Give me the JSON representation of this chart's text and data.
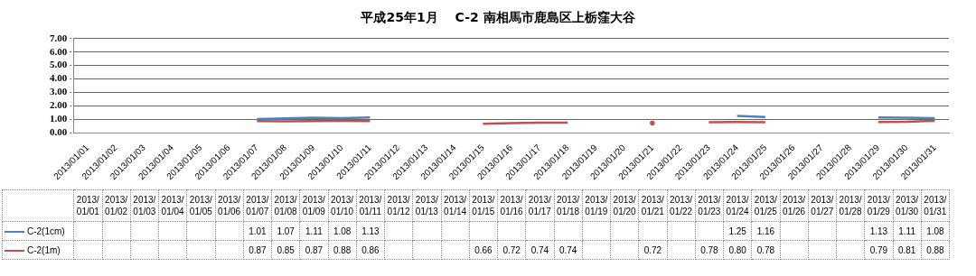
{
  "chart_data": {
    "type": "line",
    "title": "平成25年1月　 C-2 南相馬市鹿島区上栃窪大谷",
    "categories": [
      "2013/01/01",
      "2013/01/02",
      "2013/01/03",
      "2013/01/04",
      "2013/01/05",
      "2013/01/06",
      "2013/01/07",
      "2013/01/08",
      "2013/01/09",
      "2013/01/10",
      "2013/01/11",
      "2013/01/12",
      "2013/01/13",
      "2013/01/14",
      "2013/01/15",
      "2013/01/16",
      "2013/01/17",
      "2013/01/18",
      "2013/01/19",
      "2013/01/20",
      "2013/01/21",
      "2013/01/22",
      "2013/01/23",
      "2013/01/24",
      "2013/01/25",
      "2013/01/26",
      "2013/01/27",
      "2013/01/28",
      "2013/01/29",
      "2013/01/30",
      "2013/01/31"
    ],
    "series": [
      {
        "name": "C-2(1cm)",
        "color": "#4f81bd",
        "values": [
          null,
          null,
          null,
          null,
          null,
          null,
          1.01,
          1.07,
          1.11,
          1.08,
          1.13,
          null,
          null,
          null,
          null,
          null,
          null,
          null,
          null,
          null,
          null,
          null,
          null,
          1.25,
          1.16,
          null,
          null,
          null,
          1.13,
          1.11,
          1.08
        ],
        "value_labels": [
          null,
          null,
          null,
          null,
          null,
          null,
          "1.01",
          "1.07",
          "1.11",
          "1.08",
          "1.13",
          null,
          null,
          null,
          null,
          null,
          null,
          null,
          null,
          null,
          null,
          null,
          null,
          "1.25",
          "1.16",
          null,
          null,
          null,
          "1.13",
          "1.11",
          "1.08"
        ]
      },
      {
        "name": "C-2(1m)",
        "color": "#c0504d",
        "values": [
          null,
          null,
          null,
          null,
          null,
          null,
          0.87,
          0.85,
          0.87,
          0.88,
          0.86,
          null,
          null,
          null,
          0.66,
          0.72,
          0.74,
          0.74,
          null,
          null,
          0.72,
          null,
          0.78,
          0.8,
          0.78,
          null,
          null,
          null,
          0.79,
          0.81,
          0.88
        ],
        "value_labels": [
          null,
          null,
          null,
          null,
          null,
          null,
          "0.87",
          "0.85",
          "0.87",
          "0.88",
          "0.86",
          null,
          null,
          null,
          "0.66",
          "0.72",
          "0.74",
          "0.74",
          null,
          null,
          "0.72",
          null,
          "0.78",
          "0.80",
          "0.78",
          null,
          null,
          null,
          "0.79",
          "0.81",
          "0.88"
        ]
      }
    ],
    "ylim": [
      0,
      7
    ],
    "yticks": [
      {
        "value": 0,
        "label": "0.00"
      },
      {
        "value": 1,
        "label": "1.00"
      },
      {
        "value": 2,
        "label": "2.00"
      },
      {
        "value": 3,
        "label": "3.00"
      },
      {
        "value": 4,
        "label": "4.00"
      },
      {
        "value": 5,
        "label": "5.00"
      },
      {
        "value": 6,
        "label": "6.00"
      },
      {
        "value": 7,
        "label": "7.00"
      }
    ],
    "grid": "y",
    "legend": "bottom left",
    "marker": "none",
    "line_style": "solid"
  }
}
